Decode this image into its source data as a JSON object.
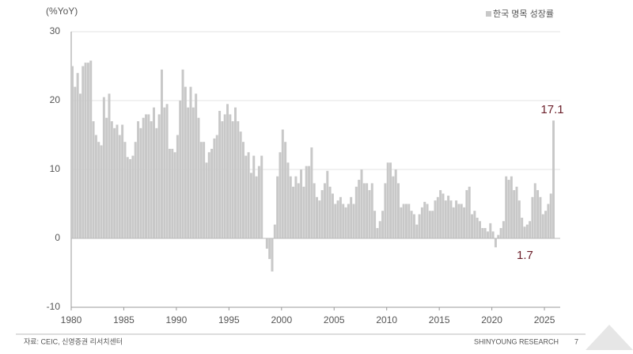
{
  "chart_data": {
    "type": "bar",
    "y_unit": "(%YoY)",
    "source": "자료: CEIC, 신영증권 리서치센터",
    "footer_brand": "SHINYOUNG RESEARCH",
    "page_number": "7",
    "legend_position": "top-right",
    "grid": true,
    "xlim": [
      1980,
      2026.5
    ],
    "xticks": [
      1980,
      1985,
      1990,
      1995,
      2000,
      2005,
      2010,
      2015,
      2020,
      2025
    ],
    "ylim": [
      -10,
      30
    ],
    "yticks": [
      -10,
      0,
      10,
      20,
      30
    ],
    "x": [
      1980,
      1980.25,
      1980.5,
      1980.75,
      1981,
      1981.25,
      1981.5,
      1981.75,
      1982,
      1982.25,
      1982.5,
      1982.75,
      1983,
      1983.25,
      1983.5,
      1983.75,
      1984,
      1984.25,
      1984.5,
      1984.75,
      1985,
      1985.25,
      1985.5,
      1985.75,
      1986,
      1986.25,
      1986.5,
      1986.75,
      1987,
      1987.25,
      1987.5,
      1987.75,
      1988,
      1988.25,
      1988.5,
      1988.75,
      1989,
      1989.25,
      1989.5,
      1989.75,
      1990,
      1990.25,
      1990.5,
      1990.75,
      1991,
      1991.25,
      1991.5,
      1991.75,
      1992,
      1992.25,
      1992.5,
      1992.75,
      1993,
      1993.25,
      1993.5,
      1993.75,
      1994,
      1994.25,
      1994.5,
      1994.75,
      1995,
      1995.25,
      1995.5,
      1995.75,
      1996,
      1996.25,
      1996.5,
      1996.75,
      1997,
      1997.25,
      1997.5,
      1997.75,
      1998,
      1998.25,
      1998.5,
      1998.75,
      1999,
      1999.25,
      1999.5,
      1999.75,
      2000,
      2000.25,
      2000.5,
      2000.75,
      2001,
      2001.25,
      2001.5,
      2001.75,
      2002,
      2002.25,
      2002.5,
      2002.75,
      2003,
      2003.25,
      2003.5,
      2003.75,
      2004,
      2004.25,
      2004.5,
      2004.75,
      2005,
      2005.25,
      2005.5,
      2005.75,
      2006,
      2006.25,
      2006.5,
      2006.75,
      2007,
      2007.25,
      2007.5,
      2007.75,
      2008,
      2008.25,
      2008.5,
      2008.75,
      2009,
      2009.25,
      2009.5,
      2009.75,
      2010,
      2010.25,
      2010.5,
      2010.75,
      2011,
      2011.25,
      2011.5,
      2011.75,
      2012,
      2012.25,
      2012.5,
      2012.75,
      2013,
      2013.25,
      2013.5,
      2013.75,
      2014,
      2014.25,
      2014.5,
      2014.75,
      2015,
      2015.25,
      2015.5,
      2015.75,
      2016,
      2016.25,
      2016.5,
      2016.75,
      2017,
      2017.25,
      2017.5,
      2017.75,
      2018,
      2018.25,
      2018.5,
      2018.75,
      2019,
      2019.25,
      2019.5,
      2019.75,
      2020,
      2020.25,
      2020.5,
      2020.75,
      2021,
      2021.25,
      2021.5,
      2021.75,
      2022,
      2022.25,
      2022.5,
      2022.75,
      2023,
      2023.25,
      2023.5,
      2023.75,
      2024,
      2024.25,
      2024.5,
      2024.75,
      2025,
      2025.25,
      2025.5,
      2025.75
    ],
    "series": [
      {
        "name": "한국 명목 성장률",
        "color": "#c8c8c8",
        "values": [
          25,
          22,
          24,
          21,
          25,
          25.5,
          25.5,
          25.8,
          17,
          15,
          14,
          13.5,
          20.5,
          17.5,
          21,
          17,
          16,
          16.5,
          15,
          16.5,
          14,
          11.8,
          11.5,
          12,
          14,
          17,
          16,
          17.5,
          18,
          18,
          17,
          19,
          16,
          18,
          24.5,
          19,
          19.5,
          13,
          13,
          12.5,
          15,
          20,
          24.5,
          22,
          19,
          22,
          19,
          21,
          17.5,
          14,
          14,
          11,
          12.5,
          13,
          14.5,
          15,
          18.5,
          17,
          18,
          19.5,
          18,
          17,
          19,
          17,
          15.5,
          14,
          12,
          12.5,
          9.5,
          12,
          9,
          10.5,
          12,
          0,
          -1.5,
          -3,
          -4.8,
          2,
          9,
          12.5,
          15.8,
          14,
          11,
          9,
          7.5,
          9,
          8,
          10,
          7.5,
          10.5,
          10.5,
          13.2,
          8,
          6,
          5.5,
          7,
          8,
          9.8,
          7.5,
          6.5,
          5,
          5.5,
          6,
          5,
          4.5,
          5,
          6,
          5,
          7.5,
          8.5,
          10,
          8,
          8,
          7,
          8,
          4,
          1.5,
          2.5,
          4,
          8,
          11,
          11,
          9,
          10,
          8,
          4.5,
          5,
          5,
          5,
          4,
          3.5,
          2,
          3.5,
          4.5,
          5.3,
          5,
          4,
          4,
          5.5,
          6,
          7,
          6.5,
          5.5,
          6.2,
          5.5,
          4.5,
          5.5,
          5,
          5,
          4.5,
          7,
          7.5,
          3.5,
          4,
          3,
          2.5,
          1.5,
          1.5,
          1,
          2.2,
          1,
          -1.3,
          0.5,
          1.5,
          2.5,
          9,
          8.5,
          9,
          7,
          7.5,
          5.5,
          3,
          1.7,
          2,
          2.5,
          6,
          8,
          7,
          6,
          3.5,
          4,
          5,
          6.5,
          17.1
        ]
      }
    ],
    "annotations": [
      {
        "label": "17.1",
        "x": 2025.75,
        "value": 17.1,
        "color": "#6b1f2a"
      },
      {
        "label": "1.7",
        "x": 2023,
        "value": 1.7,
        "color": "#6b1f2a"
      }
    ]
  }
}
